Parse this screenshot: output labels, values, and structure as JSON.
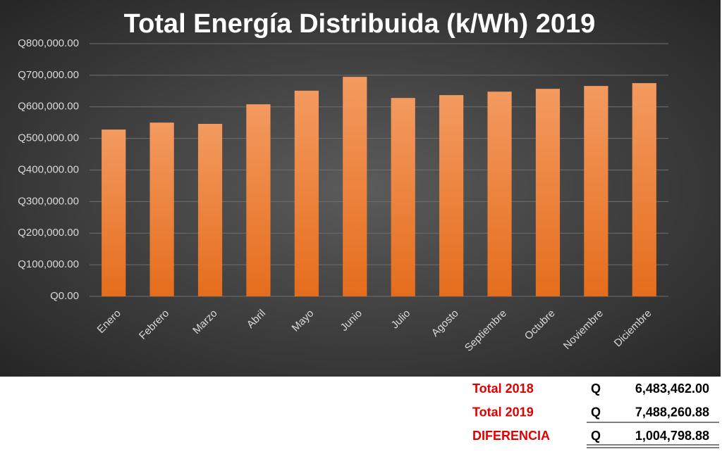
{
  "chart_data": {
    "type": "bar",
    "title": "Total Energía Distribuida (k/Wh) 2019",
    "categories": [
      "Enero",
      "Febrero",
      "Marzo",
      "Abril",
      "Mayo",
      "Junio",
      "Julio",
      "Agosto",
      "Septiembre",
      "Octubre",
      "Noviembre",
      "Diciembre"
    ],
    "values": [
      528000,
      550000,
      546000,
      608000,
      651000,
      695000,
      628000,
      637000,
      648000,
      657000,
      666000,
      675000
    ],
    "color": "#ed7d31",
    "ylim": [
      0,
      800000
    ],
    "yticks": [
      {
        "value": 0,
        "label": "Q0.00"
      },
      {
        "value": 100000,
        "label": "Q100,000.00"
      },
      {
        "value": 200000,
        "label": "Q200,000.00"
      },
      {
        "value": 300000,
        "label": "Q300,000.00"
      },
      {
        "value": 400000,
        "label": "Q400,000.00"
      },
      {
        "value": 500000,
        "label": "Q500,000.00"
      },
      {
        "value": 600000,
        "label": "Q600,000.00"
      },
      {
        "value": 700000,
        "label": "Q700,000.00"
      },
      {
        "value": 800000,
        "label": "Q800,000.00"
      }
    ],
    "grid": true
  },
  "summary": {
    "rows": [
      {
        "label": "Total 2018",
        "currency": "Q",
        "amount": "6,483,462.00"
      },
      {
        "label": "Total 2019",
        "currency": "Q",
        "amount": "7,488,260.88"
      },
      {
        "label": "DIFERENCIA",
        "currency": "Q",
        "amount": "1,004,798.88"
      }
    ]
  }
}
